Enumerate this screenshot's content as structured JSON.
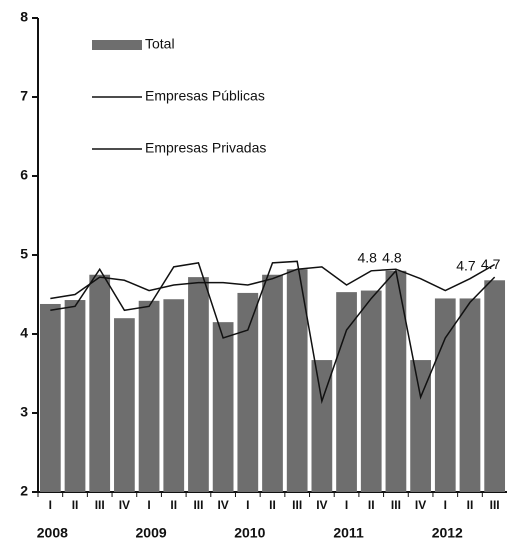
{
  "chart_data": {
    "type": "bar_line",
    "categories": [
      "I",
      "II",
      "III",
      "IV",
      "I",
      "II",
      "III",
      "IV",
      "I",
      "II",
      "III",
      "IV",
      "I",
      "II",
      "III",
      "IV",
      "I",
      "II",
      "III"
    ],
    "year_labels": [
      "2008",
      "2009",
      "2010",
      "2011",
      "2012"
    ],
    "ylim": [
      2,
      8
    ],
    "yticks": [
      2,
      3,
      4,
      5,
      6,
      7,
      8
    ],
    "series": [
      {
        "name": "Total",
        "type": "bar",
        "color": "#6e6e6e",
        "values": [
          4.38,
          4.43,
          4.75,
          4.2,
          4.42,
          4.44,
          4.72,
          4.15,
          4.52,
          4.75,
          4.82,
          3.67,
          4.53,
          4.55,
          4.8,
          3.67,
          4.45,
          4.45,
          4.68
        ]
      },
      {
        "name": "Empresas Públicas",
        "type": "line",
        "color": "#111111",
        "values": [
          4.45,
          4.5,
          4.72,
          4.68,
          4.55,
          4.62,
          4.65,
          4.65,
          4.62,
          4.7,
          4.82,
          4.85,
          4.62,
          4.8,
          4.82,
          4.7,
          4.55,
          4.7,
          4.88
        ],
        "value_labels": [
          null,
          null,
          null,
          null,
          null,
          null,
          null,
          null,
          null,
          null,
          null,
          null,
          null,
          "4.8",
          null,
          null,
          null,
          "4.7",
          null
        ]
      },
      {
        "name": "Empresas Privadas",
        "type": "line",
        "color": "#111111",
        "values": [
          4.3,
          4.35,
          4.82,
          4.3,
          4.35,
          4.85,
          4.9,
          3.95,
          4.05,
          4.9,
          4.92,
          3.15,
          4.05,
          4.45,
          4.8,
          3.2,
          3.95,
          4.4,
          4.72
        ],
        "value_labels": [
          null,
          null,
          null,
          null,
          null,
          null,
          null,
          null,
          null,
          null,
          null,
          null,
          null,
          null,
          "4.8",
          null,
          null,
          null,
          "4.7"
        ]
      }
    ]
  }
}
